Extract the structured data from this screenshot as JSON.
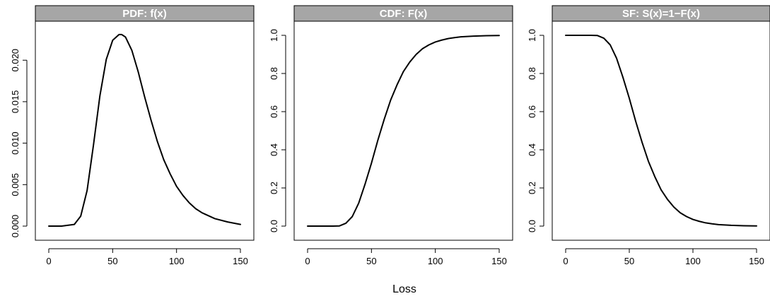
{
  "xlabel": "Loss",
  "colors": {
    "strip": "#a6a6a6",
    "line": "#000000",
    "background": "#ffffff"
  },
  "chart_data": [
    {
      "type": "line",
      "title": "PDF: f(x)",
      "xlim": [
        0,
        150
      ],
      "ylim": [
        0,
        0.023
      ],
      "xticks": [
        0,
        50,
        100,
        150
      ],
      "yticks": [
        0.0,
        0.005,
        0.01,
        0.015,
        0.02
      ],
      "ytick_labels": [
        "0.000",
        "0.005",
        "0.010",
        "0.015",
        "0.020"
      ],
      "x": [
        0,
        10,
        20,
        25,
        30,
        35,
        40,
        45,
        50,
        55,
        57,
        60,
        65,
        70,
        75,
        80,
        85,
        90,
        95,
        100,
        105,
        110,
        115,
        120,
        130,
        140,
        150
      ],
      "y": [
        0,
        0,
        0.0002,
        0.0012,
        0.0043,
        0.0098,
        0.0157,
        0.0201,
        0.0224,
        0.0231,
        0.0231,
        0.0228,
        0.0212,
        0.0186,
        0.0156,
        0.0128,
        0.0102,
        0.008,
        0.0063,
        0.0048,
        0.0037,
        0.0028,
        0.0021,
        0.0016,
        0.0009,
        0.0005,
        0.0002
      ]
    },
    {
      "type": "line",
      "title": "CDF: F(x)",
      "xlim": [
        0,
        150
      ],
      "ylim": [
        0,
        1
      ],
      "xticks": [
        0,
        50,
        100,
        150
      ],
      "yticks": [
        0.0,
        0.2,
        0.4,
        0.6,
        0.8,
        1.0
      ],
      "ytick_labels": [
        "0.0",
        "0.2",
        "0.4",
        "0.6",
        "0.8",
        "1.0"
      ],
      "x": [
        0,
        10,
        20,
        25,
        30,
        35,
        40,
        45,
        50,
        55,
        60,
        65,
        70,
        75,
        80,
        85,
        90,
        95,
        100,
        105,
        110,
        115,
        120,
        130,
        140,
        150
      ],
      "y": [
        0,
        0,
        0,
        0.001,
        0.015,
        0.05,
        0.12,
        0.22,
        0.33,
        0.45,
        0.56,
        0.66,
        0.74,
        0.81,
        0.86,
        0.9,
        0.93,
        0.95,
        0.965,
        0.975,
        0.983,
        0.988,
        0.992,
        0.996,
        0.998,
        0.999
      ]
    },
    {
      "type": "line",
      "title": "SF: S(x)=1−F(x)",
      "xlim": [
        0,
        150
      ],
      "ylim": [
        0,
        1
      ],
      "xticks": [
        0,
        50,
        100,
        150
      ],
      "yticks": [
        0.0,
        0.2,
        0.4,
        0.6,
        0.8,
        1.0
      ],
      "ytick_labels": [
        "0.0",
        "0.2",
        "0.4",
        "0.6",
        "0.8",
        "1.0"
      ],
      "x": [
        0,
        10,
        20,
        25,
        30,
        35,
        40,
        45,
        50,
        55,
        60,
        65,
        70,
        75,
        80,
        85,
        90,
        95,
        100,
        105,
        110,
        115,
        120,
        130,
        140,
        150
      ],
      "y": [
        1,
        1,
        1,
        0.999,
        0.985,
        0.95,
        0.88,
        0.78,
        0.67,
        0.55,
        0.44,
        0.34,
        0.26,
        0.19,
        0.14,
        0.1,
        0.07,
        0.05,
        0.035,
        0.025,
        0.017,
        0.012,
        0.008,
        0.004,
        0.002,
        0.001
      ]
    }
  ]
}
